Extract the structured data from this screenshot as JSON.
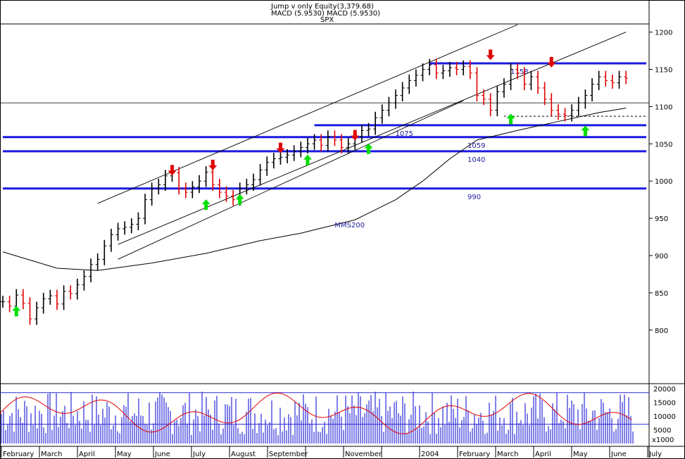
{
  "header": {
    "line1": "Jump v only Equity(3,379.68)",
    "line2": "MACD (5.9530) MACD (5.9530)",
    "line3": "SPX"
  },
  "colors": {
    "level": "#1a1ae0",
    "level_label": "#1e1e9a",
    "up_bar": "#000000",
    "down_bar": "#e00000",
    "buy_arrow": "#00e000",
    "sell_arrow": "#e00000",
    "volume": "#2a2ad8",
    "oscillator": "#e00000"
  },
  "chart_data": [
    {
      "type": "candlestick",
      "title": "SPX",
      "ylim": [
        780,
        1210
      ],
      "y_ticks": [
        800,
        850,
        900,
        950,
        1000,
        1050,
        1100,
        1150,
        1200
      ],
      "x_months": [
        "February",
        "March",
        "April",
        "May",
        "June",
        "July",
        "August",
        "September",
        "",
        "November",
        "",
        "2004",
        "February",
        "March",
        "April",
        "May",
        "June",
        "July"
      ],
      "close_series": [
        [
          0,
          838
        ],
        [
          1,
          832
        ],
        [
          2,
          847
        ],
        [
          3,
          836
        ],
        [
          4,
          815
        ],
        [
          5,
          830
        ],
        [
          6,
          842
        ],
        [
          7,
          846
        ],
        [
          8,
          835
        ],
        [
          9,
          852
        ],
        [
          10,
          849
        ],
        [
          11,
          861
        ],
        [
          12,
          872
        ],
        [
          13,
          888
        ],
        [
          14,
          895
        ],
        [
          15,
          913
        ],
        [
          16,
          928
        ],
        [
          17,
          936
        ],
        [
          18,
          938
        ],
        [
          19,
          942
        ],
        [
          20,
          950
        ],
        [
          21,
          975
        ],
        [
          22,
          990
        ],
        [
          23,
          995
        ],
        [
          24,
          1007
        ],
        [
          25,
          1011
        ],
        [
          26,
          990
        ],
        [
          27,
          985
        ],
        [
          28,
          992
        ],
        [
          29,
          1000
        ],
        [
          30,
          1012
        ],
        [
          31,
          995
        ],
        [
          32,
          985
        ],
        [
          33,
          980
        ],
        [
          34,
          975
        ],
        [
          35,
          990
        ],
        [
          36,
          995
        ],
        [
          37,
          1002
        ],
        [
          38,
          1015
        ],
        [
          39,
          1025
        ],
        [
          40,
          1030
        ],
        [
          41,
          1032
        ],
        [
          42,
          1035
        ],
        [
          43,
          1040
        ],
        [
          44,
          1045
        ],
        [
          45,
          1050
        ],
        [
          46,
          1055
        ],
        [
          47,
          1048
        ],
        [
          48,
          1060
        ],
        [
          49,
          1055
        ],
        [
          50,
          1045
        ],
        [
          51,
          1050
        ],
        [
          52,
          1060
        ],
        [
          53,
          1068
        ],
        [
          54,
          1070
        ],
        [
          55,
          1085
        ],
        [
          56,
          1095
        ],
        [
          57,
          1105
        ],
        [
          58,
          1115
        ],
        [
          59,
          1125
        ],
        [
          60,
          1135
        ],
        [
          61,
          1142
        ],
        [
          62,
          1150
        ],
        [
          63,
          1156
        ],
        [
          64,
          1145
        ],
        [
          65,
          1148
        ],
        [
          66,
          1152
        ],
        [
          67,
          1150
        ],
        [
          68,
          1154
        ],
        [
          69,
          1145
        ],
        [
          70,
          1115
        ],
        [
          71,
          1110
        ],
        [
          72,
          1095
        ],
        [
          73,
          1120
        ],
        [
          74,
          1130
        ],
        [
          75,
          1150
        ],
        [
          76,
          1145
        ],
        [
          77,
          1130
        ],
        [
          78,
          1140
        ],
        [
          79,
          1125
        ],
        [
          80,
          1110
        ],
        [
          81,
          1095
        ],
        [
          82,
          1090
        ],
        [
          83,
          1088
        ],
        [
          84,
          1095
        ],
        [
          85,
          1105
        ],
        [
          86,
          1115
        ],
        [
          87,
          1130
        ],
        [
          88,
          1140
        ],
        [
          89,
          1135
        ],
        [
          90,
          1132
        ],
        [
          91,
          1140
        ],
        [
          92,
          1138
        ]
      ],
      "mms200": [
        [
          0,
          905
        ],
        [
          8,
          883
        ],
        [
          14,
          880
        ],
        [
          22,
          890
        ],
        [
          30,
          903
        ],
        [
          38,
          920
        ],
        [
          44,
          930
        ],
        [
          52,
          948
        ],
        [
          58,
          975
        ],
        [
          62,
          1000
        ],
        [
          66,
          1030
        ],
        [
          70,
          1055
        ],
        [
          76,
          1068
        ],
        [
          82,
          1080
        ],
        [
          88,
          1092
        ],
        [
          92,
          1098
        ]
      ],
      "channel": [
        {
          "from": [
            14,
            970
          ],
          "to": [
            76,
            1210
          ]
        },
        {
          "from": [
            17,
            915
          ],
          "to": [
            92,
            1200
          ]
        },
        {
          "from": [
            17,
            895
          ],
          "to": [
            68,
            1108
          ]
        }
      ],
      "levels": [
        {
          "value": 1158,
          "label": "1158",
          "from": 63,
          "to": 95
        },
        {
          "value": 1075,
          "label": "1075",
          "from": 46,
          "to": 95
        },
        {
          "value": 1059,
          "label": "1059",
          "from": 0,
          "to": 95
        },
        {
          "value": 1040,
          "label": "1040",
          "from": 0,
          "to": 95
        },
        {
          "value": 990,
          "label": "990",
          "from": 0,
          "to": 95
        }
      ],
      "thin_levels": [
        1105
      ],
      "dotted_level": {
        "value": 1087,
        "from": 74,
        "to": 95
      },
      "annotations": [
        {
          "text": "MMS200",
          "x": 49,
          "y": 938
        }
      ],
      "buy_signals": [
        [
          2,
          825
        ],
        [
          30,
          968
        ],
        [
          35,
          975
        ],
        [
          45,
          1028
        ],
        [
          54,
          1043
        ],
        [
          75,
          1083
        ],
        [
          86,
          1067
        ]
      ],
      "sell_signals": [
        [
          25,
          1015
        ],
        [
          31,
          1022
        ],
        [
          41,
          1045
        ],
        [
          52,
          1062
        ],
        [
          72,
          1170
        ],
        [
          81,
          1160
        ]
      ]
    },
    {
      "type": "bar",
      "title": "Volume with stochastic oscillator",
      "ylim": [
        0,
        21000
      ],
      "y_ticks": [
        5000,
        10000,
        15000,
        20000
      ],
      "unit_label": "x1000",
      "reference_lines": [
        18500,
        7000
      ]
    }
  ]
}
